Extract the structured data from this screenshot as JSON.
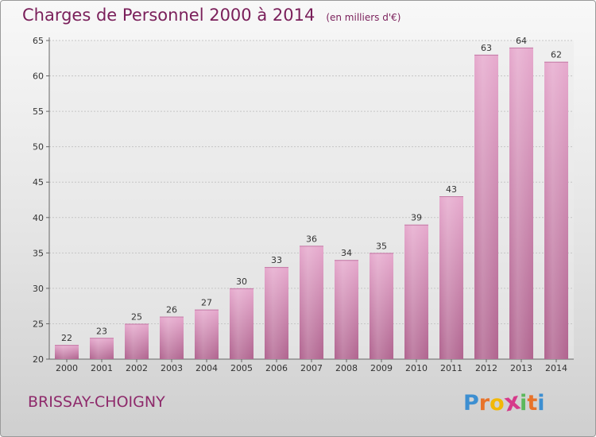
{
  "chart_data": {
    "type": "bar",
    "title": "Charges de Personnel 2000 à 2014",
    "subtitle": "(en milliers d'€)",
    "categories": [
      "2000",
      "2001",
      "2002",
      "2003",
      "2004",
      "2005",
      "2006",
      "2007",
      "2008",
      "2009",
      "2010",
      "2011",
      "2012",
      "2013",
      "2014"
    ],
    "values": [
      22,
      23,
      25,
      26,
      27,
      30,
      33,
      36,
      34,
      35,
      39,
      43,
      63,
      64,
      62
    ],
    "ylim": [
      20,
      65
    ],
    "yticks": [
      20,
      25,
      30,
      35,
      40,
      45,
      50,
      55,
      60,
      65
    ],
    "xlabel": "",
    "ylabel": "",
    "grid": true,
    "bar_color": "#d98fbb"
  },
  "commune": "BRISSAY-CHOIGNY",
  "logo": {
    "letters": [
      "P",
      "r",
      "o",
      "x",
      "i",
      "t",
      "i"
    ],
    "colors": [
      "#3d8fd1",
      "#e8732a",
      "#f2b807",
      "#d63a8a",
      "#5cb85c",
      "#e8732a",
      "#3d8fd1"
    ]
  }
}
